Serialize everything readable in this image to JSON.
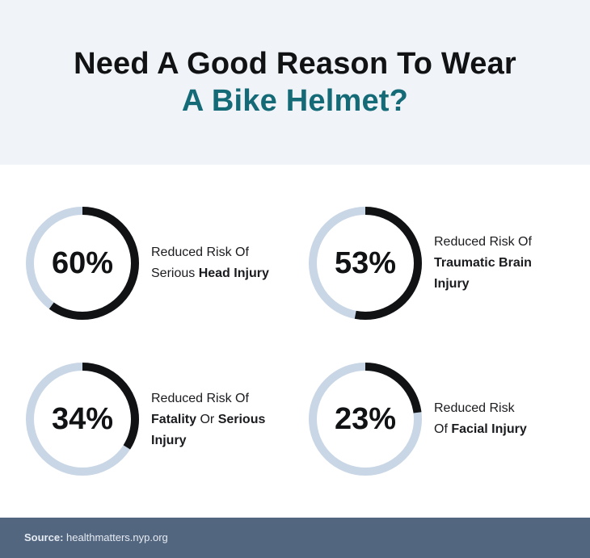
{
  "header": {
    "title_line1": "Need A Good Reason To Wear",
    "title_line2": "A Bike Helmet?"
  },
  "colors": {
    "header_bg": "#f0f3f8",
    "accent_teal": "#146a76",
    "ring_track": "#c9d6e6",
    "ring_fill": "#111214",
    "footer_bg": "#536680"
  },
  "chart_data": {
    "type": "pie",
    "style": "donut-progress",
    "items": [
      {
        "value": 60,
        "label": "60%",
        "desc_pre": "Reduced Risk Of",
        "desc_mid": "Serious ",
        "desc_bold1": "Head Injury",
        "desc_post": "",
        "desc_bold2": ""
      },
      {
        "value": 53,
        "label": "53%",
        "desc_pre": "Reduced Risk Of",
        "desc_mid": "",
        "desc_bold1": "Traumatic Brain Injury",
        "desc_post": "",
        "desc_bold2": ""
      },
      {
        "value": 34,
        "label": "34%",
        "desc_pre": "Reduced Risk Of",
        "desc_mid": "",
        "desc_bold1": "Fatality",
        "desc_post": " Or ",
        "desc_bold2": "Serious Injury"
      },
      {
        "value": 23,
        "label": "23%",
        "desc_pre": "Reduced Risk",
        "desc_mid": "Of ",
        "desc_bold1": "Facial Injury",
        "desc_post": "",
        "desc_bold2": ""
      }
    ]
  },
  "footer": {
    "source_label": "Source:",
    "source_text": " healthmatters.nyp.org"
  }
}
